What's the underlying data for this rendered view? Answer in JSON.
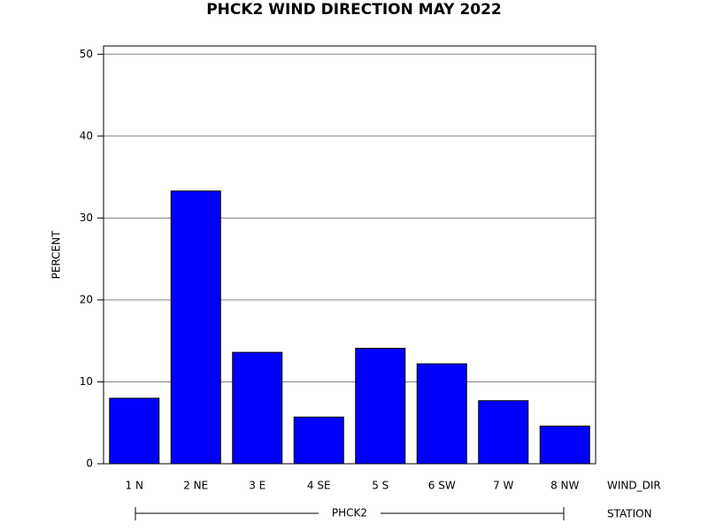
{
  "chart_data": {
    "type": "bar",
    "title": "PHCK2 WIND DIRECTION MAY 2022",
    "y_label": "PERCENT",
    "x_label": "WIND_DIR",
    "group_label": "STATION",
    "group": "PHCK2",
    "categories": [
      "1 N",
      "2 NE",
      "3 E",
      "4 SE",
      "5 S",
      "6 SW",
      "7 W",
      "8 NW"
    ],
    "values": [
      8.0,
      33.3,
      13.6,
      5.7,
      14.1,
      12.2,
      7.7,
      4.6
    ],
    "color": "#0000ff",
    "ylim": [
      0,
      51
    ],
    "yticks": [
      0,
      10,
      20,
      30,
      40,
      50
    ],
    "grid": true
  }
}
